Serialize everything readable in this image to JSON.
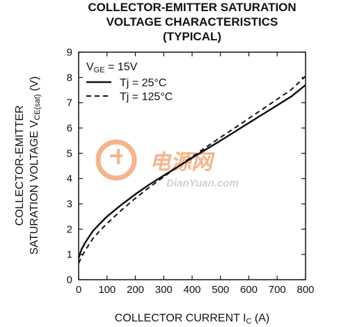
{
  "chart_data": {
    "type": "line",
    "title_lines": [
      "COLLECTOR-EMITTER SATURATION",
      "VOLTAGE CHARACTERISTICS",
      "(TYPICAL)"
    ],
    "ylabel_line1": "COLLECTOR-EMITTER",
    "ylabel_line2_main": "SATURATION VOLTAGE V",
    "ylabel_line2_sub": "CE(sat)",
    "ylabel_line2_unit": " (V)",
    "xlabel_main": "COLLECTOR CURRENT I",
    "xlabel_sub": "C",
    "xlabel_unit": " (A)",
    "xlim": [
      0,
      800
    ],
    "ylim": [
      0,
      9
    ],
    "xticks": [
      0,
      100,
      200,
      300,
      400,
      500,
      600,
      700,
      800
    ],
    "yticks": [
      0,
      1,
      2,
      3,
      4,
      5,
      6,
      7,
      8,
      9
    ],
    "grid": false,
    "legend_position": "top-left",
    "legend_condition_main": "V",
    "legend_condition_sub": "GE",
    "legend_condition_rest": " = 15V",
    "series": [
      {
        "name": "Tj = 25°C",
        "style": "solid",
        "x": [
          0,
          10,
          25,
          50,
          75,
          100,
          150,
          200,
          250,
          300,
          350,
          400,
          450,
          500,
          550,
          600,
          650,
          700,
          750,
          800
        ],
        "y": [
          0.85,
          1.2,
          1.5,
          1.92,
          2.22,
          2.5,
          2.96,
          3.38,
          3.77,
          4.12,
          4.47,
          4.82,
          5.16,
          5.5,
          5.85,
          6.2,
          6.55,
          6.9,
          7.25,
          7.7
        ]
      },
      {
        "name": "Tj = 125°C",
        "style": "dashed",
        "x": [
          0,
          10,
          25,
          50,
          75,
          100,
          150,
          200,
          250,
          300,
          350,
          400,
          450,
          500,
          550,
          600,
          650,
          700,
          750,
          800
        ],
        "y": [
          0.65,
          0.9,
          1.2,
          1.62,
          1.94,
          2.22,
          2.74,
          3.22,
          3.66,
          4.07,
          4.47,
          4.87,
          5.25,
          5.63,
          6.0,
          6.38,
          6.76,
          7.14,
          7.52,
          8.05
        ]
      }
    ]
  },
  "watermark": {
    "cn_text": "电源网",
    "url_text": "DianYuan.com"
  },
  "colors": {
    "ink": "#111111",
    "watermark_orange": "#f4a878",
    "watermark_gray": "#c9c9c9"
  }
}
